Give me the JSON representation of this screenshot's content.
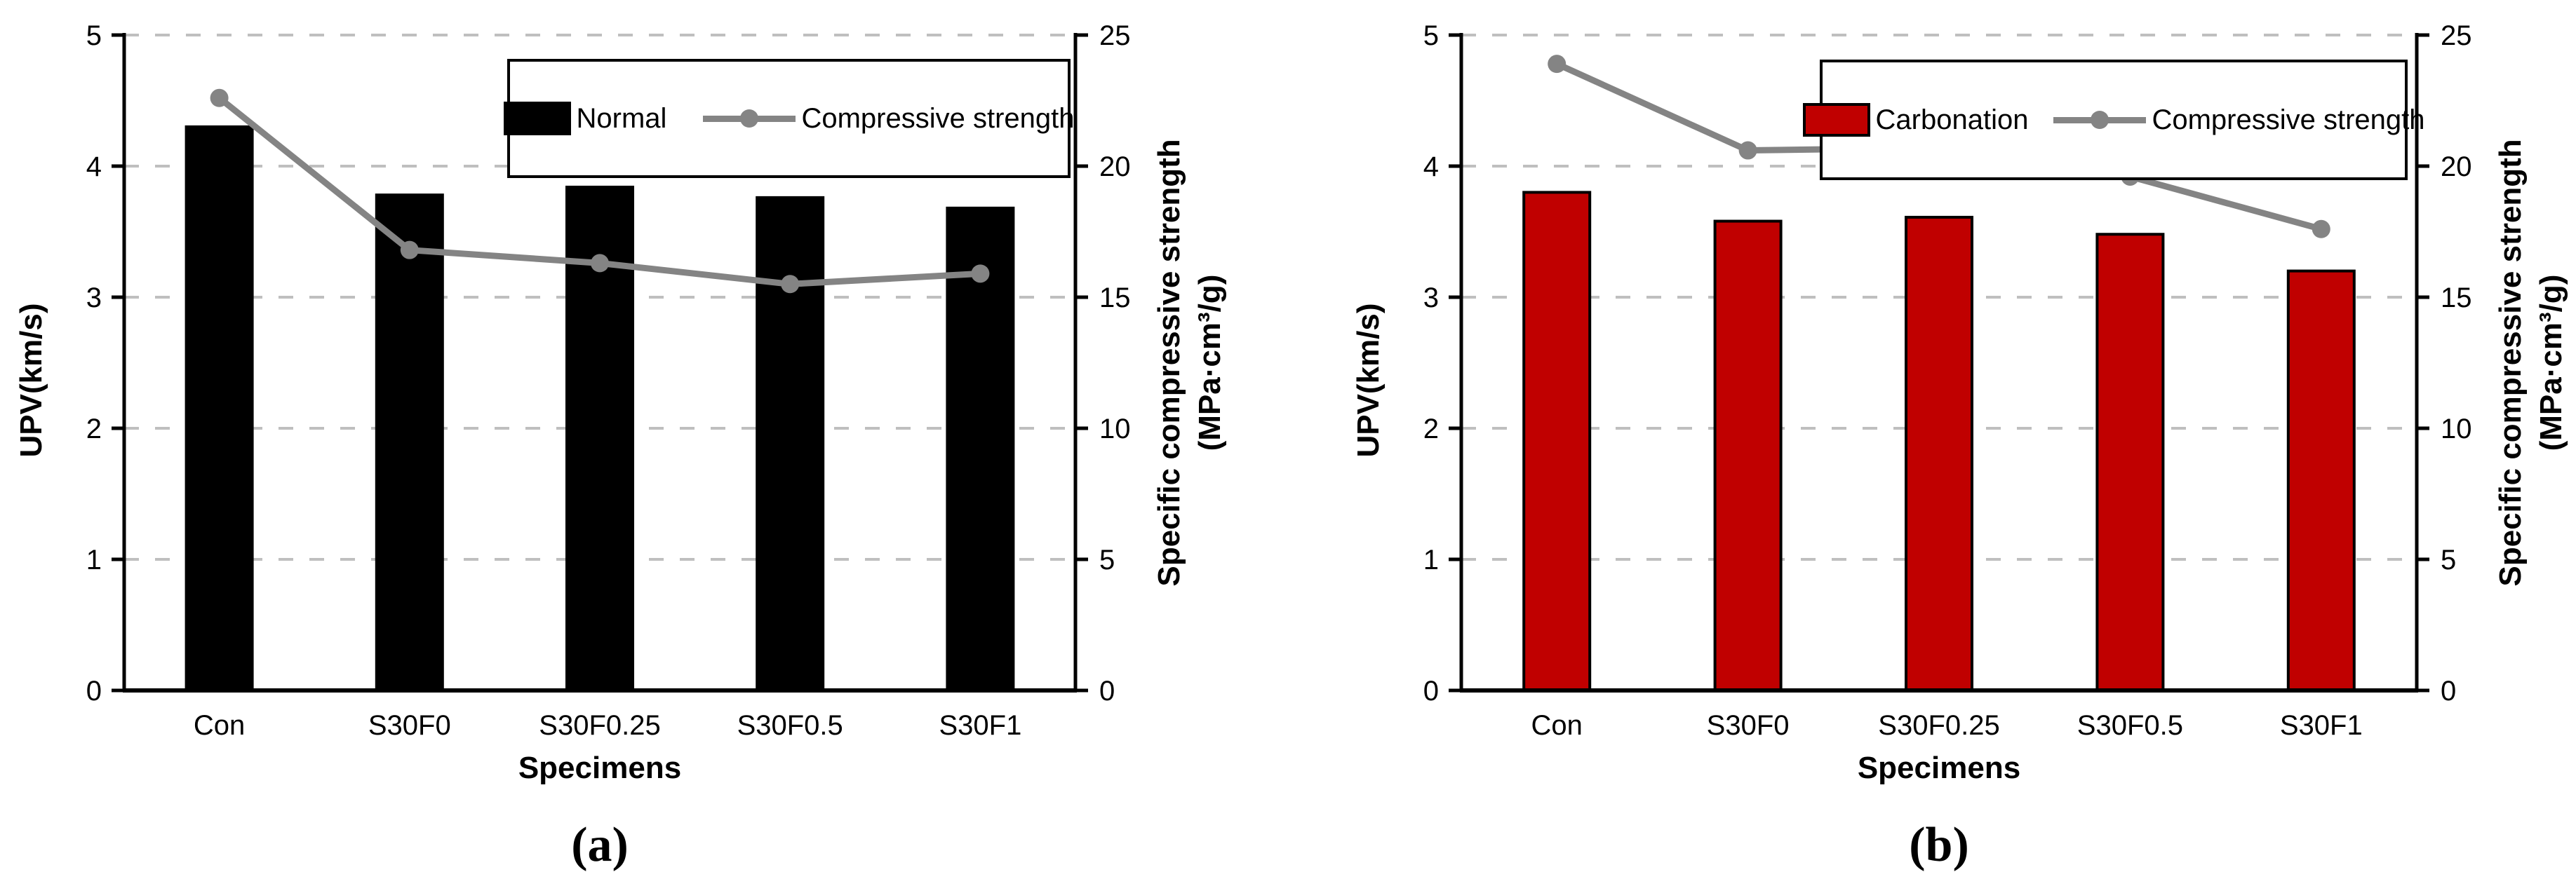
{
  "styles": {
    "background": "#ffffff",
    "axis_color": "#000000",
    "grid_color": "#bfbfbf",
    "line_color": "#848484",
    "bar_black": "#000000",
    "bar_red": "#c00000",
    "bar_border": "#000000",
    "text_color": "#000000"
  },
  "chart_data": [
    {
      "type": "bar+line dual-axis",
      "caption": "(a)",
      "categories": [
        "Con",
        "S30F0",
        "S30F0.25",
        "S30F0.5",
        "S30F1"
      ],
      "xlabel": "Specimens",
      "ylabel_left": "UPV(km/s)",
      "ylabel_right_line1": "Specific compressive strength",
      "ylabel_right_line2": "(MPa·cm³/g)",
      "ylim_left": [
        0,
        5
      ],
      "ytick_step_left": 1,
      "ylim_right": [
        0,
        25
      ],
      "ytick_step_right": 5,
      "grid": "horizontal dashed",
      "legend_position": "top-right inside",
      "series": [
        {
          "name": "Normal",
          "type": "bar",
          "axis": "left",
          "color": "#000000",
          "border": "#000000",
          "values": [
            4.3,
            3.78,
            3.84,
            3.76,
            3.68
          ]
        },
        {
          "name": "Compressive strength",
          "type": "line",
          "axis": "right",
          "color": "#848484",
          "marker": "circle",
          "values": [
            22.6,
            16.8,
            16.3,
            15.5,
            15.9
          ]
        }
      ]
    },
    {
      "type": "bar+line dual-axis",
      "caption": "(b)",
      "categories": [
        "Con",
        "S30F0",
        "S30F0.25",
        "S30F0.5",
        "S30F1"
      ],
      "xlabel": "Specimens",
      "ylabel_left": "UPV(km/s)",
      "ylabel_right_line1": "Specific compressive strength",
      "ylabel_right_line2": "(MPa·cm³/g)",
      "ylim_left": [
        0,
        5
      ],
      "ytick_step_left": 1,
      "ylim_right": [
        0,
        25
      ],
      "ytick_step_right": 5,
      "grid": "horizontal dashed",
      "legend_position": "top-right inside",
      "series": [
        {
          "name": "Carbonation",
          "type": "bar",
          "axis": "left",
          "color": "#c00000",
          "border": "#000000",
          "values": [
            3.8,
            3.58,
            3.61,
            3.48,
            3.2
          ]
        },
        {
          "name": "Compressive strength",
          "type": "line",
          "axis": "right",
          "color": "#848484",
          "marker": "circle",
          "values": [
            23.9,
            20.6,
            20.7,
            19.6,
            17.6
          ]
        }
      ]
    }
  ]
}
